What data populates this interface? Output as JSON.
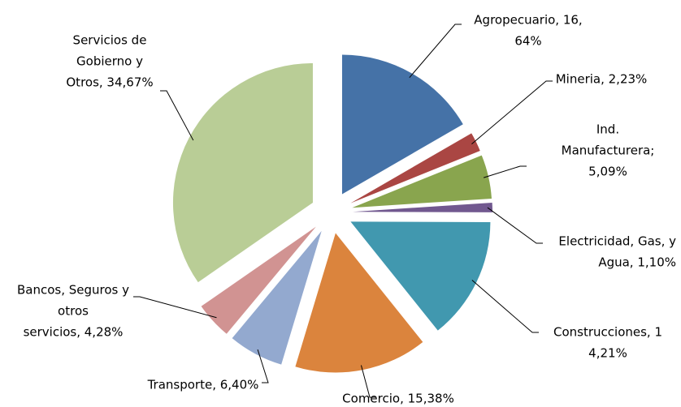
{
  "chart_data": {
    "type": "pie",
    "values": [
      16.64,
      2.23,
      5.09,
      1.1,
      14.21,
      15.38,
      6.4,
      4.28,
      34.67
    ],
    "value_labels": [
      [
        "Agropecuario, 16,",
        "64%"
      ],
      [
        "Mineria, 2,23%"
      ],
      [
        "Ind.",
        "Manufacturera;",
        "5,09%"
      ],
      [
        "Electricidad, Gas, y",
        "Agua, 1,10%"
      ],
      [
        "Construcciones, 1",
        "4,21%"
      ],
      [
        "Comercio, 15,38%"
      ],
      [
        "Transporte, 6,40%"
      ],
      [
        "Bancos, Seguros y",
        "otros",
        "servicios, 4,28%"
      ],
      [
        "Servicios de",
        "Gobierno y",
        "Otros, 34,67%"
      ]
    ],
    "colors": [
      "#4572a7",
      "#aa4643",
      "#89a54e",
      "#71588f",
      "#4198af",
      "#db843d",
      "#93a9cf",
      "#d19392",
      "#b9cd96"
    ]
  }
}
